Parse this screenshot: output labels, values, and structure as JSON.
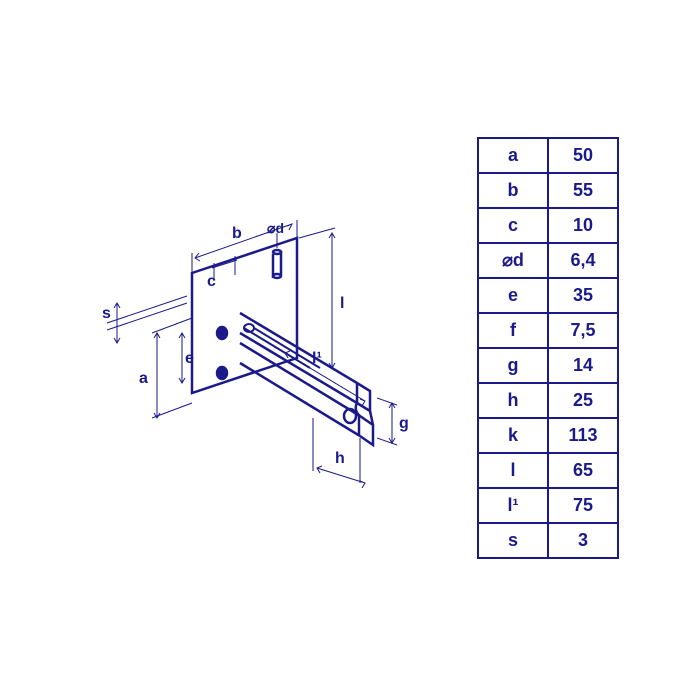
{
  "table": {
    "rows": [
      {
        "label": "a",
        "value": "50"
      },
      {
        "label": "b",
        "value": "55"
      },
      {
        "label": "c",
        "value": "10"
      },
      {
        "label": "⌀d",
        "value": "6,4"
      },
      {
        "label": "e",
        "value": "35"
      },
      {
        "label": "f",
        "value": "7,5"
      },
      {
        "label": "g",
        "value": "14"
      },
      {
        "label": "h",
        "value": "25"
      },
      {
        "label": "k",
        "value": "113"
      },
      {
        "label": "l",
        "value": "65"
      },
      {
        "label": "l¹",
        "value": "75"
      },
      {
        "label": "s",
        "value": "3"
      }
    ],
    "border_color": "#1a1a8a",
    "text_color": "#1a1a8a",
    "font_size": 18
  },
  "drawing": {
    "type": "technical-isometric",
    "stroke_color": "#1a1a8a",
    "stroke_width": 2.5,
    "thin_stroke_width": 1,
    "dim_labels": {
      "a": "a",
      "b": "b",
      "c": "c",
      "d": "d",
      "e": "e",
      "g": "g",
      "h": "h",
      "l": "l",
      "l1": "l¹",
      "s": "s"
    },
    "label_fontsize": 16
  }
}
